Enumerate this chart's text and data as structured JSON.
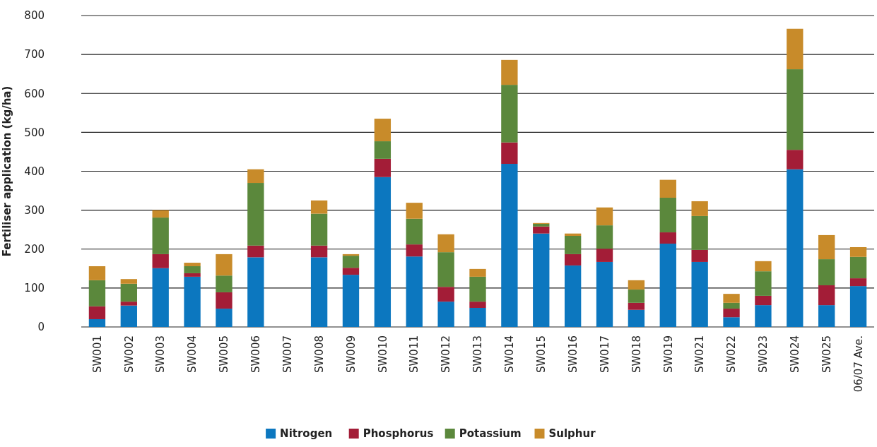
{
  "chart_data": {
    "type": "bar",
    "stacked": true,
    "ylabel": "Fertiliser application (kg/ha)",
    "categories": [
      "SW001",
      "SW002",
      "SW003",
      "SW004",
      "SW005",
      "SW006",
      "SW007",
      "SW008",
      "SW009",
      "SW010",
      "SW011",
      "SW012",
      "SW013",
      "SW014",
      "SW015",
      "SW016",
      "SW017",
      "SW018",
      "SW019",
      "SW021",
      "SW022",
      "SW023",
      "SW024",
      "SW025",
      "06/07 Ave."
    ],
    "series": [
      {
        "name": "Nitrogen",
        "color": "#0c77bf",
        "values": [
          20,
          55,
          151,
          129,
          47,
          179,
          null,
          179,
          134,
          385,
          181,
          65,
          49,
          419,
          240,
          158,
          167,
          44,
          214,
          167,
          25,
          56,
          405,
          56,
          105
        ]
      },
      {
        "name": "Phosphorus",
        "color": "#a31d37",
        "values": [
          33,
          10,
          36,
          9,
          42,
          30,
          null,
          30,
          18,
          47,
          31,
          38,
          16,
          55,
          18,
          29,
          34,
          18,
          29,
          31,
          22,
          24,
          50,
          51,
          20
        ]
      },
      {
        "name": "Potassium",
        "color": "#5b883c",
        "values": [
          67,
          46,
          94,
          18,
          43,
          161,
          null,
          82,
          31,
          45,
          66,
          89,
          64,
          148,
          7,
          47,
          60,
          34,
          89,
          87,
          15,
          63,
          207,
          67,
          55
        ]
      },
      {
        "name": "Sulphur",
        "color": "#c88b2a",
        "values": [
          36,
          12,
          19,
          9,
          55,
          35,
          null,
          34,
          4,
          58,
          41,
          46,
          20,
          64,
          2,
          6,
          46,
          24,
          46,
          38,
          23,
          26,
          104,
          62,
          25
        ]
      }
    ],
    "ylim": [
      0,
      800
    ],
    "yticks": [
      0,
      100,
      200,
      300,
      400,
      500,
      600,
      700,
      800
    ],
    "grid": "y",
    "legend": "bottom"
  }
}
